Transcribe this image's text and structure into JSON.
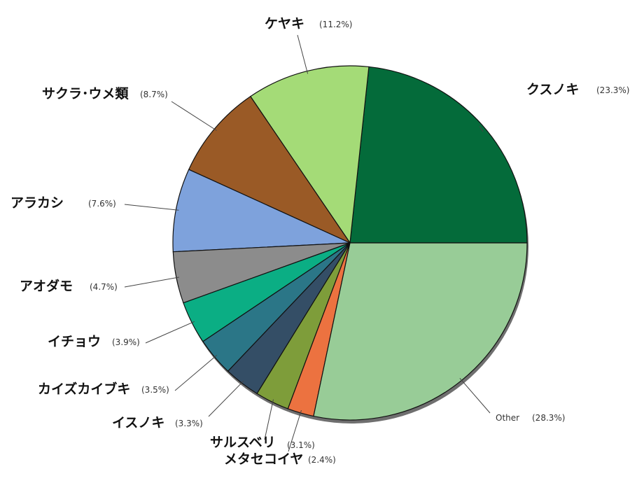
{
  "chart_data": {
    "type": "pie",
    "title": "",
    "start_angle_deg": 0,
    "direction": "counterclockwise",
    "slices": [
      {
        "label": "クスノキ",
        "value": 23.3,
        "pct_label": "(23.3%)",
        "color": "#046B3A"
      },
      {
        "label": "ケヤキ",
        "value": 11.2,
        "pct_label": "(11.2%)",
        "color": "#A4DB77"
      },
      {
        "label": "サクラ･ウメ類",
        "value": 8.7,
        "pct_label": "(8.7%)",
        "color": "#9A5A26"
      },
      {
        "label": "アラカシ",
        "value": 7.6,
        "pct_label": "(7.6%)",
        "color": "#7EA2DC"
      },
      {
        "label": "アオダモ",
        "value": 4.7,
        "pct_label": "(4.7%)",
        "color": "#8C8C8C"
      },
      {
        "label": "イチョウ",
        "value": 3.9,
        "pct_label": "(3.9%)",
        "color": "#0BAE84"
      },
      {
        "label": "カイズカイブキ",
        "value": 3.5,
        "pct_label": "(3.5%)",
        "color": "#2B7687"
      },
      {
        "label": "イスノキ",
        "value": 3.3,
        "pct_label": "(3.3%)",
        "color": "#344E66"
      },
      {
        "label": "サルスベリ",
        "value": 3.1,
        "pct_label": "(3.1%)",
        "color": "#7E9D3A"
      },
      {
        "label": "メタセコイヤ",
        "value": 2.4,
        "pct_label": "(2.4%)",
        "color": "#EC7240"
      },
      {
        "label": "Other",
        "value": 28.3,
        "pct_label": "(28.3%)",
        "color": "#98CC97"
      }
    ]
  }
}
